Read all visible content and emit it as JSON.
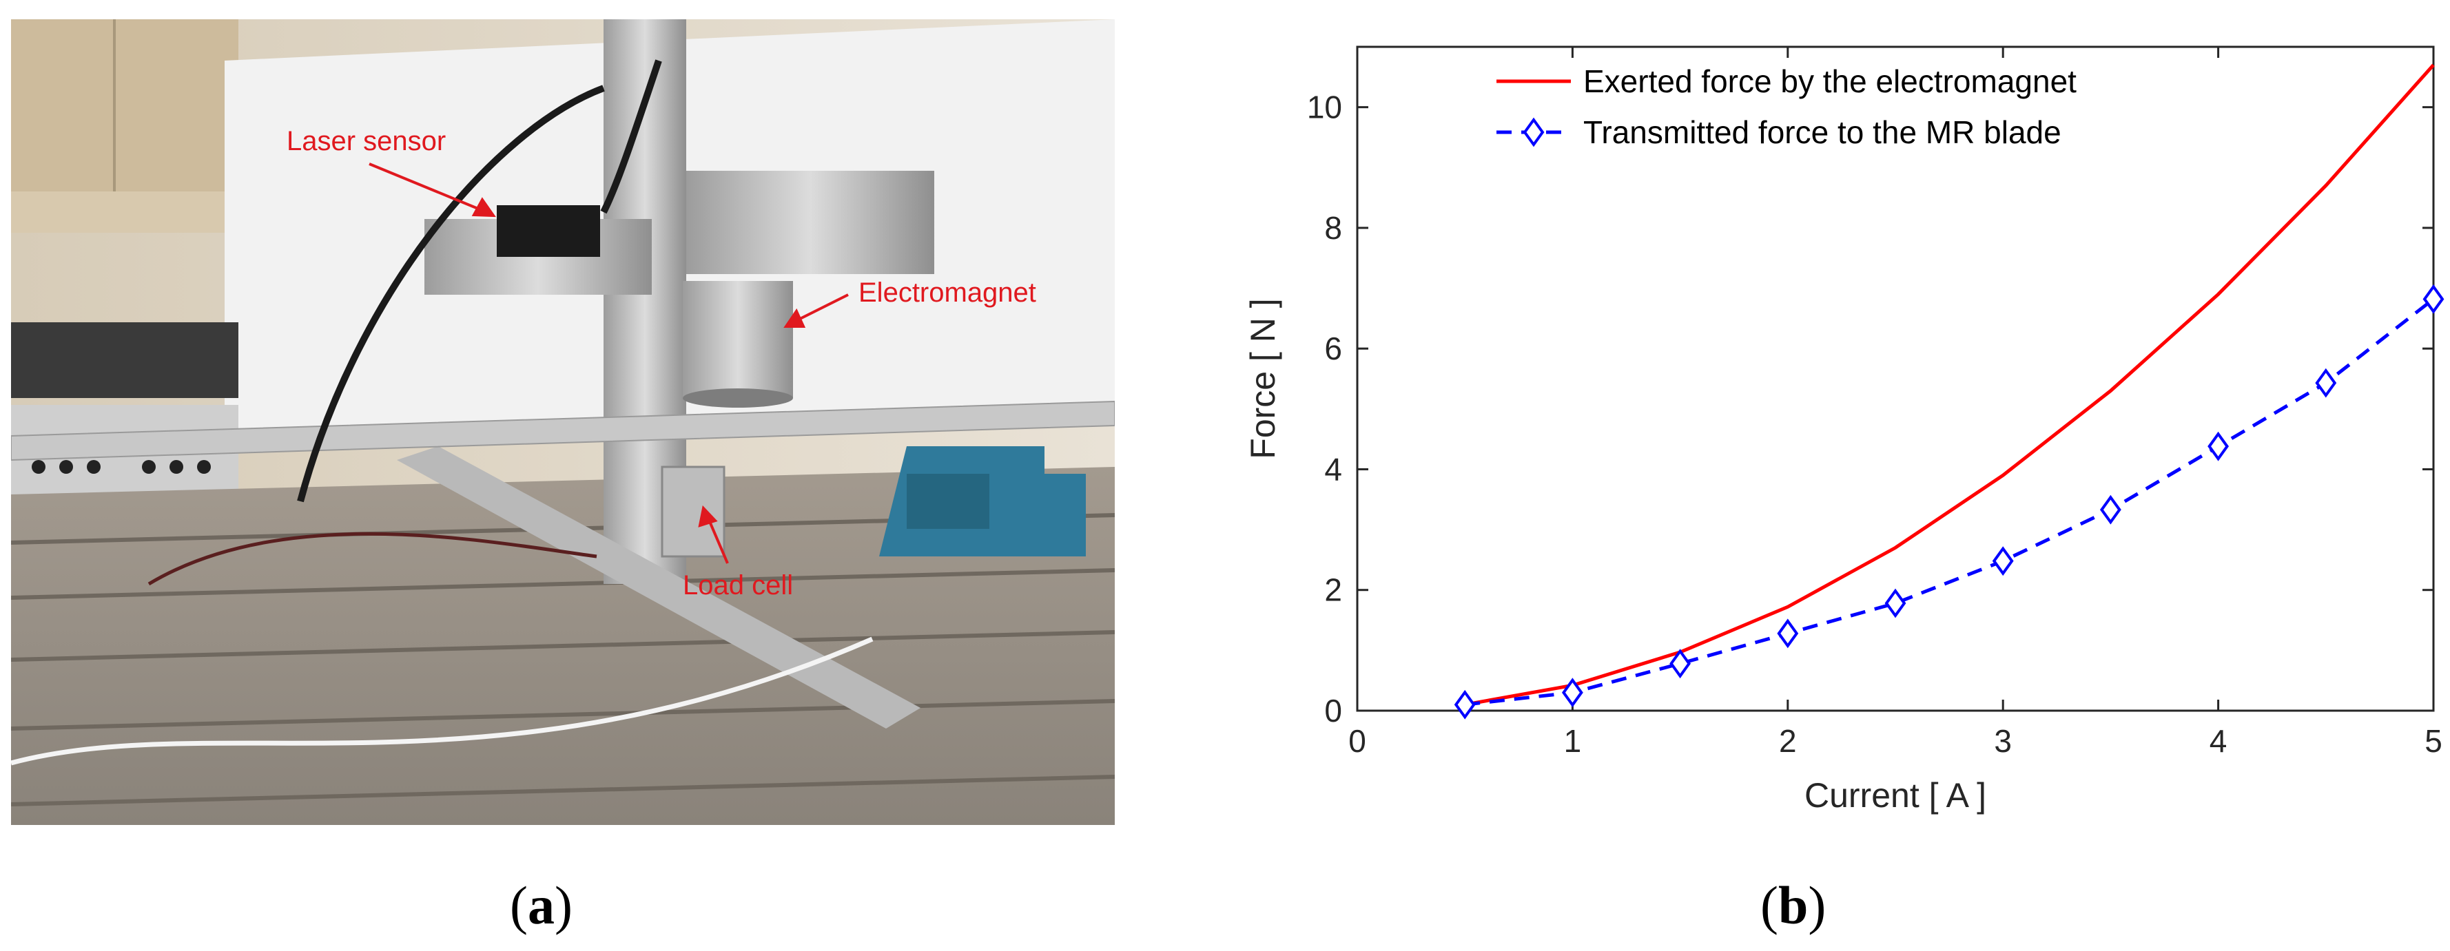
{
  "photo": {
    "labels": {
      "laser_sensor": "Laser sensor",
      "electromagnet": "Electromagnet",
      "load_cell": "Load cell"
    }
  },
  "captions": {
    "a": "a",
    "b": "b"
  },
  "colors": {
    "exerted": "#ff0000",
    "transmitted": "#0000ff",
    "photo_label": "#e0191f"
  },
  "chart_data": {
    "type": "line",
    "xlabel": "Current  [ A ]",
    "ylabel": "Force  [ N ]",
    "xlim": [
      0,
      5
    ],
    "ylim": [
      0,
      11
    ],
    "xticks": [
      0,
      1,
      2,
      3,
      4,
      5
    ],
    "yticks": [
      0,
      2,
      4,
      6,
      8,
      10
    ],
    "grid": false,
    "legend_position": "top",
    "series": [
      {
        "name": "Exerted force by the electromagnet",
        "style": "solid",
        "marker": "none",
        "x": [
          0.5,
          1.0,
          1.5,
          2.0,
          2.5,
          3.0,
          3.5,
          4.0,
          4.5,
          5.0
        ],
        "y": [
          0.1,
          0.42,
          0.97,
          1.72,
          2.7,
          3.9,
          5.3,
          6.9,
          8.7,
          10.7
        ]
      },
      {
        "name": "Transmitted force to the MR blade",
        "style": "dashed",
        "marker": "diamond",
        "x": [
          0.5,
          1.0,
          1.5,
          2.0,
          2.5,
          3.0,
          3.5,
          4.0,
          4.5,
          5.0
        ],
        "y": [
          0.1,
          0.3,
          0.78,
          1.28,
          1.78,
          2.48,
          3.33,
          4.38,
          5.43,
          6.82
        ]
      }
    ]
  }
}
